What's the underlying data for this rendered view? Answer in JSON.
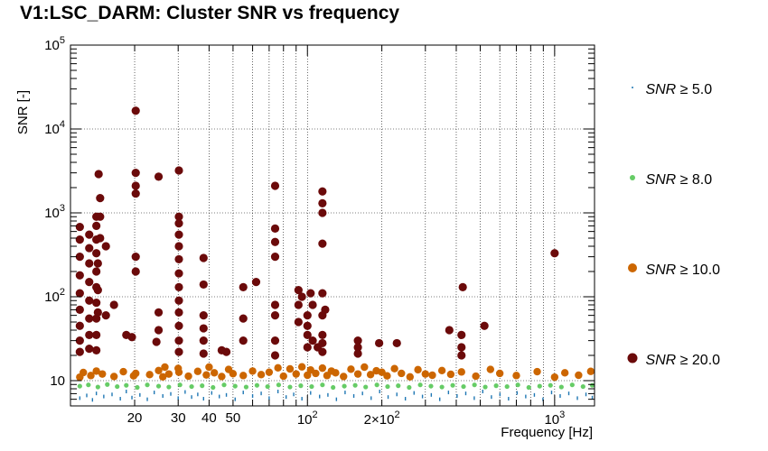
{
  "title": "V1:LSC_DARM: Cluster SNR vs frequency",
  "chart_data": {
    "type": "scatter",
    "title": "V1:LSC_DARM: Cluster SNR vs frequency",
    "xlabel": "Frequency [Hz]",
    "ylabel": "SNR [-]",
    "xscale": "log",
    "yscale": "log",
    "xlim": [
      11,
      1450
    ],
    "ylim": [
      5,
      100000
    ],
    "grid": true,
    "legend_position": "right",
    "x_tick_labels": [
      "20",
      "30",
      "40",
      "50",
      "10^2",
      "2×10^2",
      "10^3"
    ],
    "y_tick_labels": [
      "10",
      "10^2",
      "10^3",
      "10^4",
      "10^5"
    ],
    "series": [
      {
        "name": "SNR ≥ 5.0",
        "color": "#1f77b4",
        "points": [
          [
            12.0,
            6.5
          ],
          [
            12.8,
            7.0
          ],
          [
            13.5,
            6.2
          ],
          [
            14.0,
            7.4
          ],
          [
            15.0,
            6.8
          ],
          [
            16.2,
            7.2
          ],
          [
            17.5,
            6.4
          ],
          [
            18.5,
            7.8
          ],
          [
            19.5,
            6.6
          ],
          [
            21.0,
            7.1
          ],
          [
            22.5,
            6.3
          ],
          [
            24.0,
            7.6
          ],
          [
            26.0,
            6.9
          ],
          [
            28.0,
            7.3
          ],
          [
            30.0,
            6.5
          ],
          [
            32.0,
            7.7
          ],
          [
            34.0,
            6.7
          ],
          [
            36.0,
            7.2
          ],
          [
            38.0,
            6.4
          ],
          [
            41.0,
            7.5
          ],
          [
            44.0,
            6.8
          ],
          [
            47.0,
            7.1
          ],
          [
            51.0,
            6.3
          ],
          [
            55.0,
            7.6
          ],
          [
            60.0,
            6.9
          ],
          [
            65.0,
            7.4
          ],
          [
            70.0,
            6.5
          ],
          [
            76.0,
            7.8
          ],
          [
            82.0,
            6.7
          ],
          [
            88.0,
            7.2
          ],
          [
            95.0,
            6.4
          ],
          [
            103.0,
            7.5
          ],
          [
            112.0,
            6.8
          ],
          [
            121.0,
            7.1
          ],
          [
            131.0,
            6.3
          ],
          [
            142.0,
            7.6
          ],
          [
            154.0,
            6.9
          ],
          [
            167.0,
            7.4
          ],
          [
            181.0,
            6.5
          ],
          [
            196.0,
            7.8
          ],
          [
            212.0,
            6.7
          ],
          [
            230.0,
            7.2
          ],
          [
            249.0,
            6.4
          ],
          [
            270.0,
            7.5
          ],
          [
            292.0,
            6.8
          ],
          [
            317.0,
            7.1
          ],
          [
            343.0,
            6.3
          ],
          [
            372.0,
            7.6
          ],
          [
            403.0,
            6.9
          ],
          [
            437.0,
            7.4
          ],
          [
            473.0,
            6.5
          ],
          [
            512.0,
            7.8
          ],
          [
            555.0,
            6.7
          ],
          [
            601.0,
            7.2
          ],
          [
            651.0,
            6.4
          ],
          [
            705.0,
            7.5
          ],
          [
            764.0,
            6.8
          ],
          [
            828.0,
            7.1
          ],
          [
            897.0,
            6.3
          ],
          [
            972.0,
            7.6
          ],
          [
            1053.0,
            6.9
          ],
          [
            1141.0,
            7.4
          ],
          [
            1236.0,
            6.5
          ],
          [
            1339.0,
            7.2
          ],
          [
            1420.0,
            6.6
          ]
        ]
      },
      {
        "name": "SNR ≥ 8.0",
        "color": "#66cc66",
        "points": [
          [
            12.0,
            8.6
          ],
          [
            13.0,
            8.9
          ],
          [
            14.2,
            8.4
          ],
          [
            15.5,
            9.0
          ],
          [
            17.0,
            8.5
          ],
          [
            18.5,
            8.8
          ],
          [
            20.5,
            8.3
          ],
          [
            22.5,
            8.9
          ],
          [
            25.0,
            8.6
          ],
          [
            27.5,
            8.4
          ],
          [
            30.5,
            8.9
          ],
          [
            34.0,
            8.5
          ],
          [
            37.5,
            8.7
          ],
          [
            41.5,
            8.3
          ],
          [
            46.0,
            8.9
          ],
          [
            51.0,
            8.6
          ],
          [
            56.5,
            8.4
          ],
          [
            62.5,
            8.8
          ],
          [
            69.0,
            8.5
          ],
          [
            76.5,
            8.9
          ],
          [
            85.0,
            8.4
          ],
          [
            94.0,
            8.7
          ],
          [
            104.0,
            8.5
          ],
          [
            115.0,
            8.9
          ],
          [
            127.0,
            8.3
          ],
          [
            141.0,
            8.6
          ],
          [
            156.0,
            8.8
          ],
          [
            172.0,
            8.4
          ],
          [
            191.0,
            8.9
          ],
          [
            211.0,
            8.5
          ],
          [
            233.0,
            8.7
          ],
          [
            258.0,
            8.3
          ],
          [
            286.0,
            8.9
          ],
          [
            316.0,
            8.6
          ],
          [
            350.0,
            8.4
          ],
          [
            387.0,
            8.8
          ],
          [
            428.0,
            8.5
          ],
          [
            474.0,
            8.9
          ],
          [
            524.0,
            8.4
          ],
          [
            580.0,
            8.7
          ],
          [
            642.0,
            8.5
          ],
          [
            710.0,
            8.9
          ],
          [
            786.0,
            8.3
          ],
          [
            870.0,
            8.6
          ],
          [
            962.0,
            8.8
          ],
          [
            1065.0,
            8.4
          ],
          [
            1178.0,
            8.9
          ],
          [
            1303.0,
            8.5
          ],
          [
            1420.0,
            8.8
          ]
        ]
      },
      {
        "name": "SNR ≥ 10.0",
        "color": "#cc6600",
        "points": [
          [
            12.0,
            11.0
          ],
          [
            12.4,
            12.5
          ],
          [
            13.3,
            11.5
          ],
          [
            14.0,
            13.0
          ],
          [
            14.8,
            12.0
          ],
          [
            16.5,
            11.2
          ],
          [
            18.0,
            12.8
          ],
          [
            19.8,
            11.4
          ],
          [
            20.2,
            12.2
          ],
          [
            23.0,
            11.8
          ],
          [
            25.0,
            13.2
          ],
          [
            26.0,
            11.1
          ],
          [
            26.5,
            14.5
          ],
          [
            27.5,
            12.0
          ],
          [
            30.0,
            14.0
          ],
          [
            30.2,
            12.6
          ],
          [
            33.0,
            11.3
          ],
          [
            36.0,
            12.9
          ],
          [
            39.0,
            11.7
          ],
          [
            40.0,
            14.5
          ],
          [
            42.0,
            12.4
          ],
          [
            45.0,
            11.2
          ],
          [
            48.0,
            13.6
          ],
          [
            50.0,
            12.1
          ],
          [
            55.0,
            11.5
          ],
          [
            60.0,
            13.0
          ],
          [
            65.0,
            11.8
          ],
          [
            70.0,
            12.6
          ],
          [
            76.0,
            14.2
          ],
          [
            80.0,
            11.3
          ],
          [
            85.0,
            13.8
          ],
          [
            90.0,
            12.0
          ],
          [
            95.0,
            14.6
          ],
          [
            100.0,
            11.6
          ],
          [
            103.0,
            13.4
          ],
          [
            108.0,
            12.2
          ],
          [
            115.0,
            14.1
          ],
          [
            120.0,
            11.5
          ],
          [
            125.0,
            13.0
          ],
          [
            130.0,
            12.4
          ],
          [
            140.0,
            11.2
          ],
          [
            150.0,
            13.7
          ],
          [
            160.0,
            12.0
          ],
          [
            170.0,
            14.5
          ],
          [
            180.0,
            11.8
          ],
          [
            190.0,
            13.1
          ],
          [
            200.0,
            12.6
          ],
          [
            210.0,
            11.4
          ],
          [
            225.0,
            13.9
          ],
          [
            240.0,
            12.2
          ],
          [
            260.0,
            11.1
          ],
          [
            280.0,
            13.5
          ],
          [
            300.0,
            12.0
          ],
          [
            320.0,
            11.6
          ],
          [
            350.0,
            13.2
          ],
          [
            380.0,
            11.9
          ],
          [
            420.0,
            12.7
          ],
          [
            480.0,
            11.3
          ],
          [
            550.0,
            13.6
          ],
          [
            600.0,
            12.2
          ],
          [
            700.0,
            11.5
          ],
          [
            850.0,
            12.8
          ],
          [
            1000.0,
            11.0
          ],
          [
            1100.0,
            12.4
          ],
          [
            1250.0,
            11.6
          ],
          [
            1400.0,
            12.9
          ]
        ]
      },
      {
        "name": "SNR ≥ 20.0",
        "color": "#6b0a0a",
        "points": [
          [
            12.0,
            680
          ],
          [
            12.0,
            480
          ],
          [
            12.0,
            300
          ],
          [
            12.0,
            180
          ],
          [
            12.0,
            110
          ],
          [
            12.0,
            70
          ],
          [
            12.0,
            45
          ],
          [
            12.0,
            30
          ],
          [
            12.0,
            22
          ],
          [
            13.1,
            550
          ],
          [
            13.1,
            380
          ],
          [
            13.1,
            250
          ],
          [
            13.1,
            150
          ],
          [
            13.1,
            90
          ],
          [
            13.1,
            55
          ],
          [
            13.1,
            35
          ],
          [
            13.1,
            24
          ],
          [
            14.0,
            900
          ],
          [
            14.0,
            700
          ],
          [
            14.0,
            480
          ],
          [
            14.0,
            330
          ],
          [
            14.0,
            200
          ],
          [
            14.0,
            130
          ],
          [
            14.0,
            85
          ],
          [
            14.0,
            55
          ],
          [
            14.0,
            35
          ],
          [
            14.0,
            23
          ],
          [
            14.5,
            1500
          ],
          [
            14.5,
            900
          ],
          [
            14.5,
            500
          ],
          [
            14.3,
            2900
          ],
          [
            14.2,
            250
          ],
          [
            14.2,
            120
          ],
          [
            14.2,
            65
          ],
          [
            15.3,
            400
          ],
          [
            15.3,
            60
          ],
          [
            16.5,
            80
          ],
          [
            18.5,
            35
          ],
          [
            19.5,
            33
          ],
          [
            20.2,
            16500
          ],
          [
            20.2,
            3000
          ],
          [
            20.2,
            2100
          ],
          [
            20.2,
            1700
          ],
          [
            20.2,
            300
          ],
          [
            20.2,
            200
          ],
          [
            25.0,
            2700
          ],
          [
            25.0,
            65
          ],
          [
            25.0,
            40
          ],
          [
            24.5,
            29
          ],
          [
            30.2,
            3200
          ],
          [
            30.2,
            900
          ],
          [
            30.2,
            750
          ],
          [
            30.2,
            550
          ],
          [
            30.2,
            400
          ],
          [
            30.2,
            280
          ],
          [
            30.2,
            190
          ],
          [
            30.2,
            130
          ],
          [
            30.2,
            90
          ],
          [
            30.2,
            65
          ],
          [
            30.2,
            45
          ],
          [
            30.2,
            30
          ],
          [
            30.2,
            22
          ],
          [
            38.0,
            290
          ],
          [
            38.0,
            140
          ],
          [
            38.0,
            60
          ],
          [
            38.0,
            42
          ],
          [
            38.0,
            30
          ],
          [
            38.0,
            21
          ],
          [
            45.0,
            23
          ],
          [
            47.0,
            22
          ],
          [
            55.0,
            130
          ],
          [
            55.0,
            55
          ],
          [
            55.0,
            30
          ],
          [
            62.0,
            150
          ],
          [
            74.0,
            2100
          ],
          [
            74.0,
            650
          ],
          [
            74.0,
            450
          ],
          [
            74.0,
            300
          ],
          [
            74.0,
            80
          ],
          [
            74.0,
            60
          ],
          [
            74.0,
            30
          ],
          [
            74.0,
            20
          ],
          [
            92.0,
            120
          ],
          [
            92.0,
            80
          ],
          [
            92.0,
            50
          ],
          [
            95.0,
            100
          ],
          [
            100.0,
            60
          ],
          [
            100.0,
            45
          ],
          [
            100.0,
            35
          ],
          [
            100.0,
            25
          ],
          [
            103.0,
            110
          ],
          [
            105.0,
            80
          ],
          [
            105.0,
            30
          ],
          [
            110.0,
            25
          ],
          [
            115.0,
            1800
          ],
          [
            115.0,
            1300
          ],
          [
            115.0,
            1000
          ],
          [
            115.0,
            430
          ],
          [
            115.0,
            110
          ],
          [
            115.0,
            60
          ],
          [
            115.0,
            35
          ],
          [
            115.0,
            28
          ],
          [
            115.0,
            22
          ],
          [
            118.0,
            70
          ],
          [
            160.0,
            30
          ],
          [
            160.0,
            25
          ],
          [
            160.0,
            21
          ],
          [
            195.0,
            28
          ],
          [
            230.0,
            28
          ],
          [
            375.0,
            40
          ],
          [
            425.0,
            130
          ],
          [
            420.0,
            35
          ],
          [
            420.0,
            25
          ],
          [
            420.0,
            20
          ],
          [
            520.0,
            45
          ],
          [
            1000.0,
            330
          ]
        ]
      }
    ]
  },
  "legend": [
    {
      "prefix": "SNR",
      "rest": " ≥ 5.0",
      "color": "#1f77b4"
    },
    {
      "prefix": "SNR",
      "rest": " ≥ 8.0",
      "color": "#66cc66"
    },
    {
      "prefix": "SNR",
      "rest": " ≥ 10.0",
      "color": "#cc6600"
    },
    {
      "prefix": "SNR",
      "rest": " ≥ 20.0",
      "color": "#6b0a0a"
    }
  ]
}
